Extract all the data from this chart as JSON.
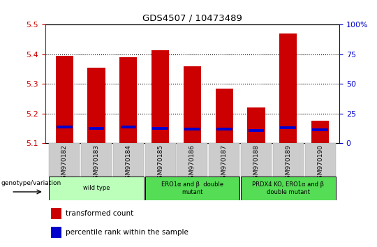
{
  "title": "GDS4507 / 10473489",
  "samples": [
    "GSM970182",
    "GSM970183",
    "GSM970184",
    "GSM970185",
    "GSM970186",
    "GSM970187",
    "GSM970188",
    "GSM970189",
    "GSM970190"
  ],
  "transformed_counts": [
    5.395,
    5.355,
    5.39,
    5.415,
    5.36,
    5.285,
    5.22,
    5.47,
    5.175
  ],
  "percentile_ranks": [
    5.155,
    5.15,
    5.155,
    5.15,
    5.148,
    5.148,
    5.143,
    5.153,
    5.145
  ],
  "bar_bottom": 5.1,
  "ylim": [
    5.1,
    5.5
  ],
  "yticks_left": [
    5.1,
    5.2,
    5.3,
    5.4,
    5.5
  ],
  "yticks_right": [
    0,
    25,
    50,
    75,
    100
  ],
  "grid_yticks": [
    5.2,
    5.3,
    5.4
  ],
  "bar_color": "#cc0000",
  "percentile_color": "#0000cc",
  "bar_width": 0.55,
  "left_tick_color": "#cc0000",
  "right_tick_color": "#0000cc",
  "group_wild_color": "#bbffbb",
  "group_ero_color": "#55dd55",
  "group_prdx_color": "#55dd55",
  "groups": [
    {
      "label": "wild type",
      "start": 0,
      "end": 2
    },
    {
      "label": "ERO1α and β  double\nmutant",
      "start": 3,
      "end": 5
    },
    {
      "label": "PRDX4 KO, ERO1α and β\ndouble mutant",
      "start": 6,
      "end": 8
    }
  ],
  "legend_red_label": "transformed count",
  "legend_blue_label": "percentile rank within the sample",
  "genotype_label": "genotype/variation"
}
